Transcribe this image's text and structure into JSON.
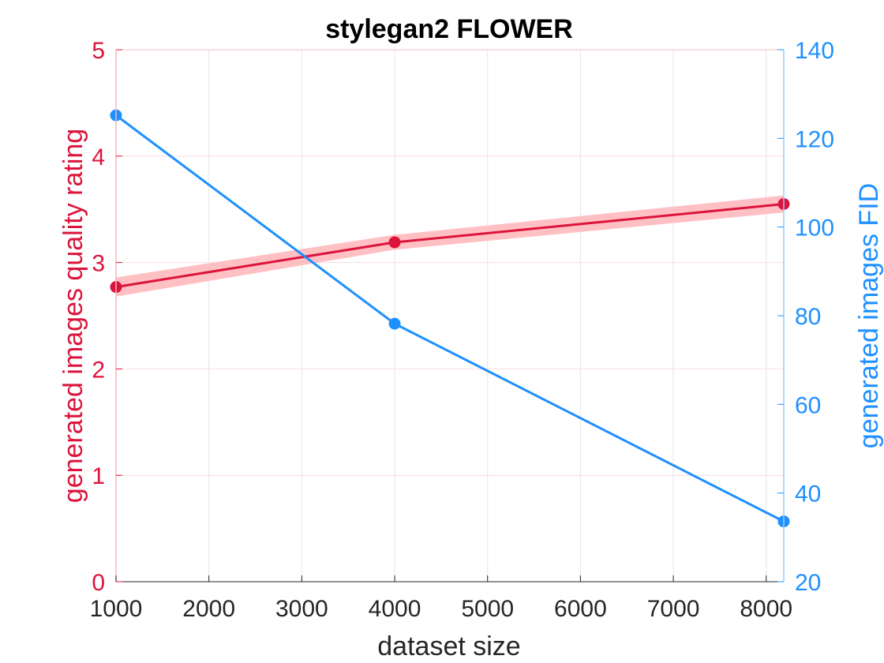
{
  "chart_data": {
    "type": "line",
    "title": "stylegan2 FLOWER",
    "xlabel": "dataset size",
    "ylabel_left": "generated images quality rating",
    "ylabel_right": "generated images FID",
    "xlim": [
      1000,
      8189
    ],
    "ylim_left": [
      0,
      5
    ],
    "ylim_right": [
      20,
      140
    ],
    "xticks": [
      1000,
      2000,
      3000,
      4000,
      5000,
      6000,
      7000,
      8000
    ],
    "yticks_left": [
      0,
      1,
      2,
      3,
      4,
      5
    ],
    "yticks_right": [
      20,
      40,
      60,
      80,
      100,
      120,
      140
    ],
    "grid": true,
    "colors": {
      "left": "#DC143C",
      "right": "#1E90FF",
      "band": "#FFC0C4"
    },
    "series": [
      {
        "axis": "left",
        "x": [
          1000,
          4000,
          8189
        ],
        "values": [
          2.77,
          3.19,
          3.55
        ],
        "band": [
          0.09,
          0.07,
          0.08
        ]
      },
      {
        "axis": "right",
        "x": [
          1000,
          4000,
          8189
        ],
        "values": [
          125.2,
          78.2,
          33.6
        ]
      }
    ]
  }
}
